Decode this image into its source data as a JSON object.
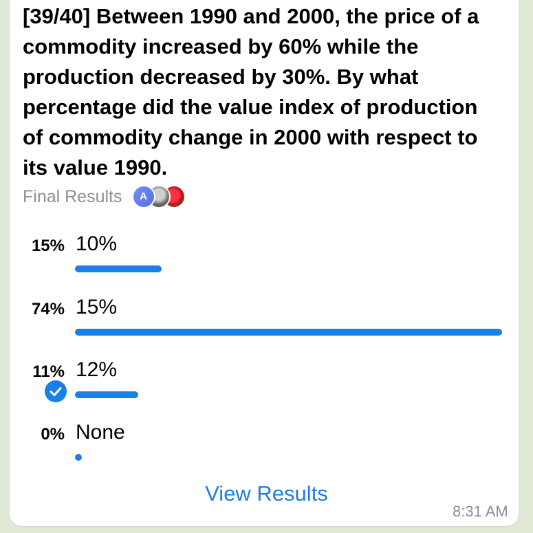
{
  "poll": {
    "question": "[39/40] Between 1990 and 2000, the price of a commodity increased by 60% while the production decreased by 30%. By what percentage did the value index of production of commodity change in 2000 with respect to its value 1990.",
    "status_label": "Final Results",
    "voter_avatar_initial": "A",
    "options": [
      {
        "percent_label": "15%",
        "label": "10%",
        "share": 0.15,
        "selected": false
      },
      {
        "percent_label": "74%",
        "label": "15%",
        "share": 0.74,
        "selected": false
      },
      {
        "percent_label": "11%",
        "label": "12%",
        "share": 0.11,
        "selected": true
      },
      {
        "percent_label": "0%",
        "label": "None",
        "share": 0.0,
        "selected": false
      }
    ],
    "view_results_label": "View Results",
    "timestamp": "8:31 AM"
  },
  "colors": {
    "accent": "#1a80e5",
    "secondary_text": "#8e8e93"
  },
  "icons": {
    "selected_option": "checkmark-circle-icon"
  }
}
